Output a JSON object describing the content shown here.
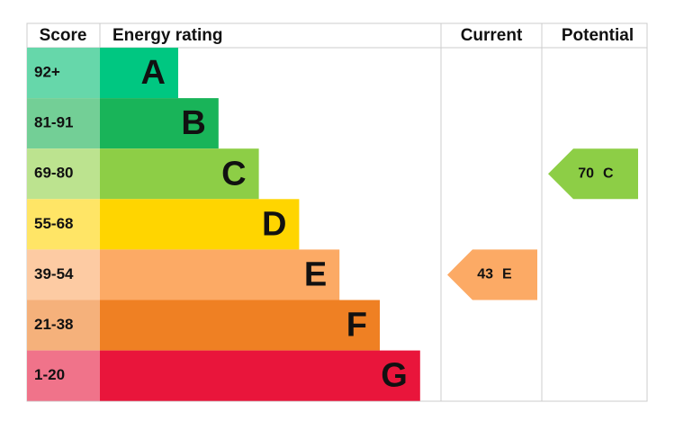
{
  "header": {
    "score": "Score",
    "rating": "Energy rating",
    "current": "Current",
    "potential": "Potential"
  },
  "rows": [
    {
      "score": "92+",
      "band": "A",
      "color": "#00c781",
      "score_color": "#66d7aa"
    },
    {
      "score": "81-91",
      "band": "B",
      "color": "#19b459",
      "score_color": "#73cf96"
    },
    {
      "score": "69-80",
      "band": "C",
      "color": "#8dce46",
      "score_color": "#bce38f"
    },
    {
      "score": "55-68",
      "band": "D",
      "color": "#ffd500",
      "score_color": "#ffe566"
    },
    {
      "score": "39-54",
      "band": "E",
      "color": "#fcaa65",
      "score_color": "#fdcba3"
    },
    {
      "score": "21-38",
      "band": "F",
      "color": "#ef8023",
      "score_color": "#f5b17b"
    },
    {
      "score": "1-20",
      "band": "G",
      "color": "#e9153b",
      "score_color": "#f0738a"
    }
  ],
  "current": {
    "rating": "43",
    "band": "E"
  },
  "potential": {
    "rating": "70",
    "band": "C"
  }
}
